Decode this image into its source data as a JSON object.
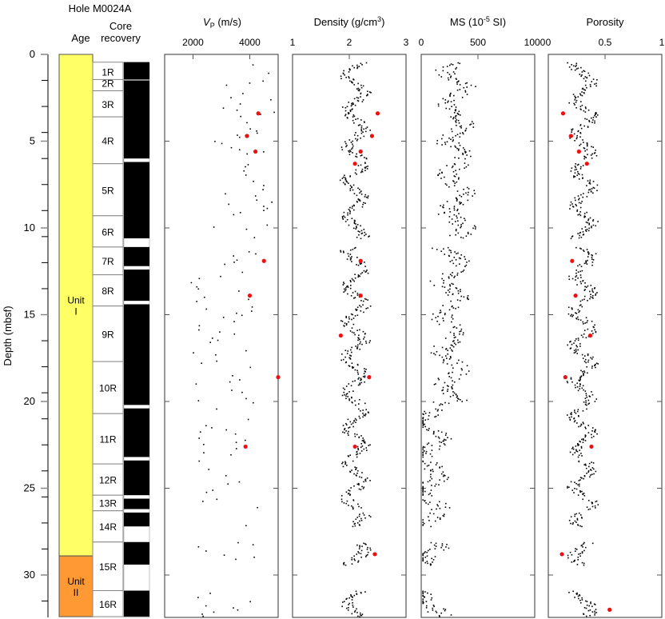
{
  "chart_data": {
    "type": "scatter",
    "title": "Hole M0024A",
    "ylabel": "Depth (mbsf)",
    "ylim": [
      0,
      32.4
    ],
    "yticks": [
      0,
      5,
      10,
      15,
      20,
      25,
      30
    ],
    "yminor_step": 1.5,
    "columns": {
      "age": {
        "label": "Age"
      },
      "core_recovery": {
        "label_line1": "Core",
        "label_line2": "recovery"
      }
    },
    "units": [
      {
        "name": "Unit I",
        "line1": "Unit",
        "line2": "I",
        "top": 0,
        "bottom": 28.9,
        "color": "#ffff66"
      },
      {
        "name": "Unit II",
        "line1": "Unit",
        "line2": "II",
        "top": 28.9,
        "bottom": 32.4,
        "color": "#ff9933"
      }
    ],
    "cores": [
      {
        "label": "1R",
        "top": 0.45,
        "bottom": 1.45
      },
      {
        "label": "2R",
        "top": 1.45,
        "bottom": 2.1
      },
      {
        "label": "3R",
        "top": 2.1,
        "bottom": 3.6
      },
      {
        "label": "4R",
        "top": 3.6,
        "bottom": 6.3
      },
      {
        "label": "5R",
        "top": 6.3,
        "bottom": 9.3
      },
      {
        "label": "6R",
        "top": 9.3,
        "bottom": 11.1
      },
      {
        "label": "7R",
        "top": 11.1,
        "bottom": 12.7
      },
      {
        "label": "8R",
        "top": 12.7,
        "bottom": 14.5
      },
      {
        "label": "9R",
        "top": 14.5,
        "bottom": 17.7
      },
      {
        "label": "10R",
        "top": 17.7,
        "bottom": 20.7
      },
      {
        "label": "11R",
        "top": 20.7,
        "bottom": 23.6
      },
      {
        "label": "12R",
        "top": 23.6,
        "bottom": 25.4
      },
      {
        "label": "13R",
        "top": 25.4,
        "bottom": 26.3
      },
      {
        "label": "14R",
        "top": 26.3,
        "bottom": 28.1
      },
      {
        "label": "15R",
        "top": 28.1,
        "bottom": 30.9
      },
      {
        "label": "16R",
        "top": 30.9,
        "bottom": 32.4
      }
    ],
    "recovered_intervals": [
      [
        0.45,
        1.45
      ],
      [
        1.5,
        6.0
      ],
      [
        6.2,
        10.6
      ],
      [
        11.1,
        12.2
      ],
      [
        12.4,
        14.2
      ],
      [
        14.4,
        20.2
      ],
      [
        20.4,
        23.2
      ],
      [
        23.4,
        25.4
      ],
      [
        25.6,
        26.2
      ],
      [
        26.4,
        27.2
      ],
      [
        28.1,
        29.4
      ],
      [
        30.9,
        32.4
      ]
    ],
    "panels": [
      {
        "id": "vp",
        "title_main": "V",
        "title_sub": "P",
        "title_rest": " (m/s)",
        "xlim": [
          1000,
          5000
        ],
        "xticks": [
          2000,
          4000
        ],
        "ticklabels": [
          "2000",
          "4000"
        ],
        "red_points": [
          [
            4300,
            3.4
          ],
          [
            3900,
            4.7
          ],
          [
            4200,
            5.6
          ],
          [
            4500,
            11.9
          ],
          [
            4000,
            13.9
          ],
          [
            5000,
            18.6
          ],
          [
            3850,
            22.6
          ]
        ]
      },
      {
        "id": "density",
        "title": "Density (g/cm",
        "title_sup": "3",
        "title_end": ")",
        "xlim": [
          1,
          3
        ],
        "xticks": [
          1,
          2,
          3
        ],
        "ticklabels": [
          "1",
          "2",
          "3"
        ],
        "red_points": [
          [
            2.5,
            3.4
          ],
          [
            2.4,
            4.7
          ],
          [
            2.2,
            5.6
          ],
          [
            2.1,
            6.3
          ],
          [
            2.2,
            11.9
          ],
          [
            2.2,
            13.9
          ],
          [
            1.85,
            16.2
          ],
          [
            2.35,
            18.6
          ],
          [
            2.1,
            22.6
          ],
          [
            2.45,
            28.8
          ]
        ]
      },
      {
        "id": "ms",
        "title": "MS (10",
        "title_sup": "-5",
        "title_end": " SI)",
        "xlim": [
          0,
          1000
        ],
        "xticks": [
          0,
          500,
          1000
        ],
        "ticklabels": [
          "0",
          "500",
          "1000"
        ],
        "red_points": []
      },
      {
        "id": "porosity",
        "title": "Porosity",
        "xlim": [
          0,
          1
        ],
        "xticks": [
          0,
          0.5,
          1
        ],
        "ticklabels": [
          "0",
          "0.5",
          "1"
        ],
        "red_points": [
          [
            0.13,
            3.4
          ],
          [
            0.2,
            4.7
          ],
          [
            0.27,
            5.6
          ],
          [
            0.34,
            6.3
          ],
          [
            0.21,
            11.9
          ],
          [
            0.24,
            13.9
          ],
          [
            0.37,
            16.2
          ],
          [
            0.15,
            18.6
          ],
          [
            0.38,
            22.6
          ],
          [
            0.12,
            28.8
          ],
          [
            0.54,
            32.0
          ]
        ]
      }
    ],
    "ytick_labels": [
      "0",
      "5",
      "10",
      "15",
      "20",
      "25",
      "30"
    ]
  }
}
